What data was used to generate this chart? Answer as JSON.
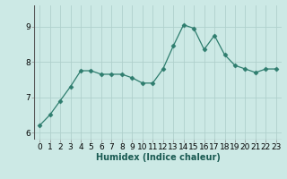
{
  "x": [
    0,
    1,
    2,
    3,
    4,
    5,
    6,
    7,
    8,
    9,
    10,
    11,
    12,
    13,
    14,
    15,
    16,
    17,
    18,
    19,
    20,
    21,
    22,
    23
  ],
  "y": [
    6.2,
    6.5,
    6.9,
    7.3,
    7.75,
    7.75,
    7.65,
    7.65,
    7.65,
    7.55,
    7.4,
    7.4,
    7.8,
    8.45,
    9.05,
    8.95,
    8.35,
    8.75,
    8.2,
    7.9,
    7.8,
    7.7,
    7.8,
    7.8
  ],
  "line_color": "#2e7d6e",
  "marker": "D",
  "marker_size": 2.5,
  "bg_color": "#cce9e5",
  "grid_color": "#b0d0cc",
  "xlabel": "Humidex (Indice chaleur)",
  "xlabel_fontsize": 7,
  "tick_fontsize": 6.5,
  "ylim": [
    5.8,
    9.6
  ],
  "xlim": [
    -0.5,
    23.5
  ],
  "yticks": [
    6,
    7,
    8,
    9
  ],
  "xticks": [
    0,
    1,
    2,
    3,
    4,
    5,
    6,
    7,
    8,
    9,
    10,
    11,
    12,
    13,
    14,
    15,
    16,
    17,
    18,
    19,
    20,
    21,
    22,
    23
  ]
}
